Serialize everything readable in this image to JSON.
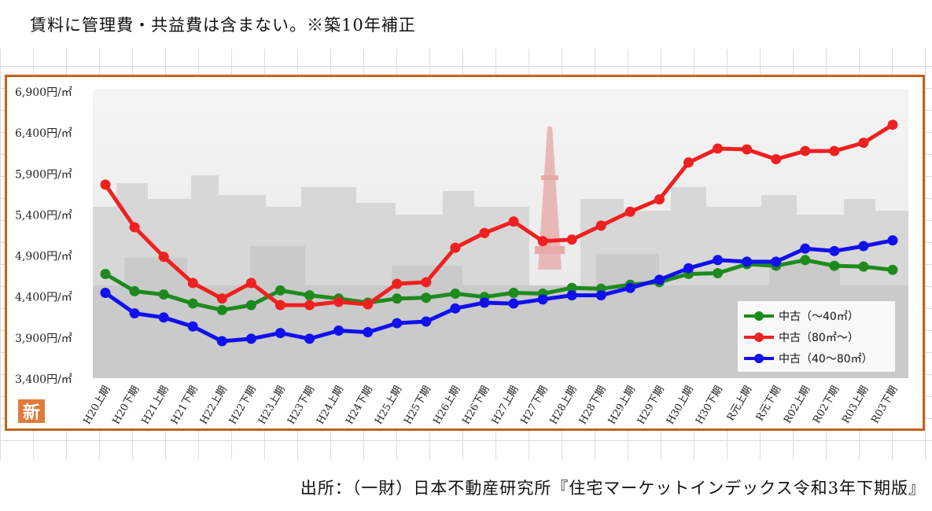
{
  "header_note": "賃料に管理費・共益費は含まない。※築10年補正",
  "footer_note": "出所：（一財）日本不動産研究所『住宅マーケットインデックス令和3年下期版』",
  "icon_label": "新",
  "colors": {
    "frame": "#c0641a",
    "series": [
      "#1e8a1e",
      "#f02020",
      "#1010f0"
    ]
  },
  "chart_data": {
    "type": "line",
    "title": "",
    "xlabel": "",
    "ylabel": "",
    "ylim": [
      3400,
      6900
    ],
    "yticks": [
      3400,
      3900,
      4400,
      4900,
      5400,
      5900,
      6400,
      6900
    ],
    "ytick_labels": [
      "3,400円/㎡",
      "3,900円/㎡",
      "4,400円/㎡",
      "4,900円/㎡",
      "5,400円/㎡",
      "5,900円/㎡",
      "6,400円/㎡",
      "6,900円/㎡"
    ],
    "grid": false,
    "legend_position": "bottom-right",
    "categories": [
      "H20上期",
      "H20下期",
      "H21上期",
      "H21下期",
      "H22上期",
      "H22下期",
      "H23上期",
      "H23下期",
      "H24上期",
      "H24下期",
      "H25上期",
      "H25下期",
      "H26上期",
      "H26下期",
      "H27上期",
      "H27下期",
      "H28上期",
      "H28下期",
      "H29上期",
      "H29下期",
      "H30上期",
      "H30下期",
      "R元上期",
      "R元下期",
      "R02上期",
      "R02下期",
      "R03上期",
      "R03下期"
    ],
    "series": [
      {
        "name": "中古（～40㎡）",
        "color": "#1e8a1e",
        "values": [
          4680,
          4470,
          4430,
          4320,
          4240,
          4300,
          4480,
          4420,
          4380,
          4330,
          4380,
          4390,
          4440,
          4400,
          4450,
          4440,
          4510,
          4500,
          4550,
          4580,
          4680,
          4690,
          4800,
          4780,
          4850,
          4780,
          4770,
          4730
        ]
      },
      {
        "name": "中古（80㎡～）",
        "color": "#f02020",
        "values": [
          5770,
          5250,
          4890,
          4570,
          4380,
          4570,
          4300,
          4300,
          4340,
          4310,
          4560,
          4580,
          5000,
          5180,
          5320,
          5080,
          5100,
          5270,
          5440,
          5590,
          6040,
          6210,
          6200,
          6080,
          6180,
          6180,
          6280,
          6500
        ]
      },
      {
        "name": "中古（40～80㎡）",
        "color": "#1010f0",
        "values": [
          4450,
          4200,
          4150,
          4040,
          3860,
          3890,
          3960,
          3890,
          3990,
          3970,
          4080,
          4100,
          4260,
          4330,
          4320,
          4370,
          4420,
          4420,
          4510,
          4610,
          4750,
          4850,
          4830,
          4830,
          4990,
          4960,
          5020,
          5090
        ]
      }
    ]
  }
}
